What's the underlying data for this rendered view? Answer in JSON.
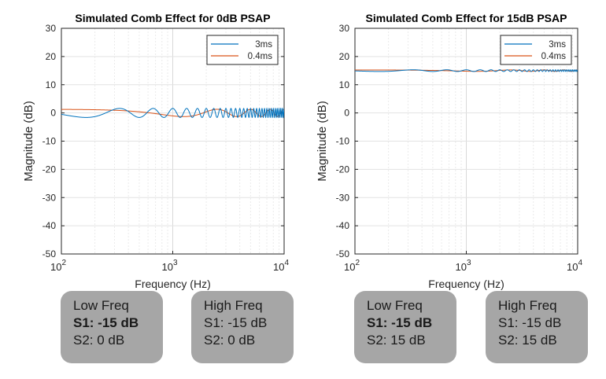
{
  "chart_data": [
    {
      "type": "line",
      "title": "Simulated Comb Effect for 0dB PSAP",
      "xlabel": "Frequency (Hz)",
      "ylabel": "Magnitude (dB)",
      "xscale": "log",
      "xlim": [
        100,
        10000
      ],
      "ylim": [
        -50,
        30
      ],
      "yticks": [
        30,
        20,
        10,
        0,
        -10,
        -20,
        -30,
        -40,
        -50
      ],
      "xticks": [
        {
          "base": "10",
          "exp": "2"
        },
        {
          "base": "10",
          "exp": "3"
        },
        {
          "base": "10",
          "exp": "4"
        }
      ],
      "grid": "on",
      "legend_position": "top-right",
      "series": [
        {
          "name": "3ms",
          "color": "#0072bd",
          "kind": "comb",
          "delay_ms": 3,
          "ripple_db": 1.6,
          "offset_db": 0
        },
        {
          "name": "0.4ms",
          "color": "#d95319",
          "kind": "comb",
          "delay_ms": 0.4,
          "ripple_db": 1.3,
          "offset_db": 0
        }
      ],
      "notes": [
        {
          "title": "Low Freq",
          "s1": "S1: -15 dB",
          "s2": "S2: 0 dB",
          "s1_bold": true
        },
        {
          "title": "High Freq",
          "s1": "S1: -15 dB",
          "s2": "S2: 0 dB",
          "s1_bold": false
        }
      ]
    },
    {
      "type": "line",
      "title": "Simulated Comb Effect for 15dB PSAP",
      "xlabel": "Frequency (Hz)",
      "ylabel": "Magnitude (dB)",
      "xscale": "log",
      "xlim": [
        100,
        10000
      ],
      "ylim": [
        -50,
        30
      ],
      "yticks": [
        30,
        20,
        10,
        0,
        -10,
        -20,
        -30,
        -40,
        -50
      ],
      "xticks": [
        {
          "base": "10",
          "exp": "2"
        },
        {
          "base": "10",
          "exp": "3"
        },
        {
          "base": "10",
          "exp": "4"
        }
      ],
      "grid": "on",
      "legend_position": "top-right",
      "series": [
        {
          "name": "3ms",
          "color": "#0072bd",
          "kind": "comb",
          "delay_ms": 3,
          "ripple_db": 0.3,
          "offset_db": 15
        },
        {
          "name": "0.4ms",
          "color": "#d95319",
          "kind": "comb",
          "delay_ms": 0.4,
          "ripple_db": 0.25,
          "offset_db": 15
        }
      ],
      "notes": [
        {
          "title": "Low Freq",
          "s1": "S1: -15 dB",
          "s2": "S2: 15 dB",
          "s1_bold": true
        },
        {
          "title": "High Freq",
          "s1": "S1: -15 dB",
          "s2": "S2: 15 dB",
          "s1_bold": false
        }
      ]
    }
  ]
}
